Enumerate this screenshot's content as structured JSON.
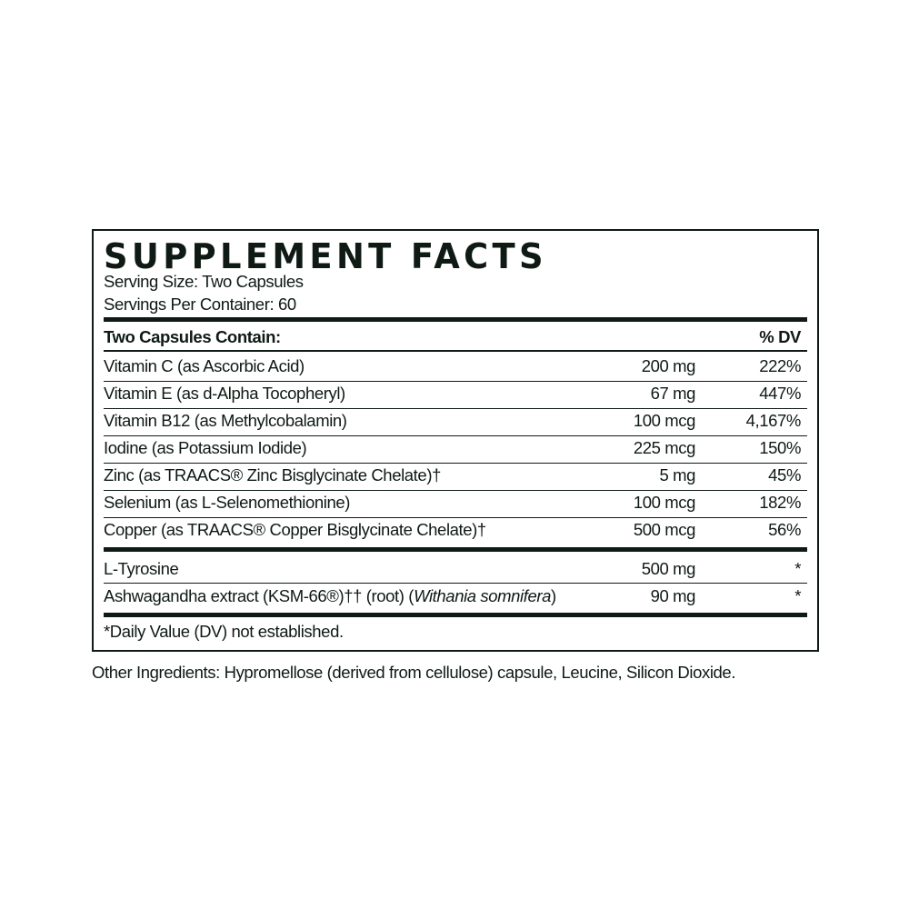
{
  "title": "SUPPLEMENT FACTS",
  "serving_size": "Serving Size: Two Capsules",
  "servings_per_container": "Servings Per Container: 60",
  "header": {
    "contains": "Two Capsules Contain:",
    "dv": "% DV"
  },
  "vitamins": [
    {
      "name": "Vitamin C (as Ascorbic Acid)",
      "amount": "200 mg",
      "dv": "222%"
    },
    {
      "name": "Vitamin E (as d-Alpha Tocopheryl)",
      "amount": "67 mg",
      "dv": "447%"
    },
    {
      "name": "Vitamin B12 (as Methylcobalamin)",
      "amount": "100 mcg",
      "dv": "4,167%"
    },
    {
      "name": "Iodine (as Potassium Iodide)",
      "amount": "225 mcg",
      "dv": "150%"
    },
    {
      "name": "Zinc (as TRAACS® Zinc Bisglycinate Chelate)†",
      "amount": "5 mg",
      "dv": "45%"
    },
    {
      "name": "Selenium (as L-Selenomethionine)",
      "amount": "100 mcg",
      "dv": "182%"
    },
    {
      "name": "Copper (as TRAACS® Copper Bisglycinate Chelate)†",
      "amount": "500 mcg",
      "dv": "56%"
    }
  ],
  "others": [
    {
      "name": "L-Tyrosine",
      "amount": "500 mg",
      "dv": "*"
    },
    {
      "name_prefix": "Ashwagandha extract (KSM-66®)†† (root) (",
      "name_italic": "Withania somnifera",
      "name_suffix": ")",
      "amount": "90 mg",
      "dv": "*"
    }
  ],
  "footnote": "*Daily Value (DV) not established.",
  "other_ingredients": "Other Ingredients: Hypromellose (derived from cellulose) capsule, Leucine, Silicon Dioxide."
}
